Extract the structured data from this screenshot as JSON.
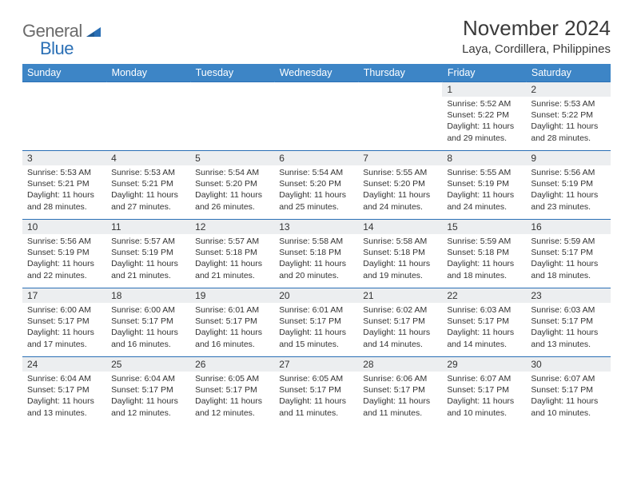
{
  "logo": {
    "part1": "General",
    "part2": "Blue"
  },
  "title": "November 2024",
  "location": "Laya, Cordillera, Philippines",
  "colors": {
    "header_bg": "#3d85c6",
    "header_text": "#ffffff",
    "daynum_bg": "#eceef0",
    "row_border": "#2a6fb5",
    "body_text": "#333333",
    "logo_gray": "#6b6b6b",
    "logo_blue": "#2a6fb5"
  },
  "days_header": [
    "Sunday",
    "Monday",
    "Tuesday",
    "Wednesday",
    "Thursday",
    "Friday",
    "Saturday"
  ],
  "weeks": [
    [
      {
        "empty": true
      },
      {
        "empty": true
      },
      {
        "empty": true
      },
      {
        "empty": true
      },
      {
        "empty": true
      },
      {
        "n": "1",
        "sr": "5:52 AM",
        "ss": "5:22 PM",
        "dl": "11 hours and 29 minutes."
      },
      {
        "n": "2",
        "sr": "5:53 AM",
        "ss": "5:22 PM",
        "dl": "11 hours and 28 minutes."
      }
    ],
    [
      {
        "n": "3",
        "sr": "5:53 AM",
        "ss": "5:21 PM",
        "dl": "11 hours and 28 minutes."
      },
      {
        "n": "4",
        "sr": "5:53 AM",
        "ss": "5:21 PM",
        "dl": "11 hours and 27 minutes."
      },
      {
        "n": "5",
        "sr": "5:54 AM",
        "ss": "5:20 PM",
        "dl": "11 hours and 26 minutes."
      },
      {
        "n": "6",
        "sr": "5:54 AM",
        "ss": "5:20 PM",
        "dl": "11 hours and 25 minutes."
      },
      {
        "n": "7",
        "sr": "5:55 AM",
        "ss": "5:20 PM",
        "dl": "11 hours and 24 minutes."
      },
      {
        "n": "8",
        "sr": "5:55 AM",
        "ss": "5:19 PM",
        "dl": "11 hours and 24 minutes."
      },
      {
        "n": "9",
        "sr": "5:56 AM",
        "ss": "5:19 PM",
        "dl": "11 hours and 23 minutes."
      }
    ],
    [
      {
        "n": "10",
        "sr": "5:56 AM",
        "ss": "5:19 PM",
        "dl": "11 hours and 22 minutes."
      },
      {
        "n": "11",
        "sr": "5:57 AM",
        "ss": "5:19 PM",
        "dl": "11 hours and 21 minutes."
      },
      {
        "n": "12",
        "sr": "5:57 AM",
        "ss": "5:18 PM",
        "dl": "11 hours and 21 minutes."
      },
      {
        "n": "13",
        "sr": "5:58 AM",
        "ss": "5:18 PM",
        "dl": "11 hours and 20 minutes."
      },
      {
        "n": "14",
        "sr": "5:58 AM",
        "ss": "5:18 PM",
        "dl": "11 hours and 19 minutes."
      },
      {
        "n": "15",
        "sr": "5:59 AM",
        "ss": "5:18 PM",
        "dl": "11 hours and 18 minutes."
      },
      {
        "n": "16",
        "sr": "5:59 AM",
        "ss": "5:17 PM",
        "dl": "11 hours and 18 minutes."
      }
    ],
    [
      {
        "n": "17",
        "sr": "6:00 AM",
        "ss": "5:17 PM",
        "dl": "11 hours and 17 minutes."
      },
      {
        "n": "18",
        "sr": "6:00 AM",
        "ss": "5:17 PM",
        "dl": "11 hours and 16 minutes."
      },
      {
        "n": "19",
        "sr": "6:01 AM",
        "ss": "5:17 PM",
        "dl": "11 hours and 16 minutes."
      },
      {
        "n": "20",
        "sr": "6:01 AM",
        "ss": "5:17 PM",
        "dl": "11 hours and 15 minutes."
      },
      {
        "n": "21",
        "sr": "6:02 AM",
        "ss": "5:17 PM",
        "dl": "11 hours and 14 minutes."
      },
      {
        "n": "22",
        "sr": "6:03 AM",
        "ss": "5:17 PM",
        "dl": "11 hours and 14 minutes."
      },
      {
        "n": "23",
        "sr": "6:03 AM",
        "ss": "5:17 PM",
        "dl": "11 hours and 13 minutes."
      }
    ],
    [
      {
        "n": "24",
        "sr": "6:04 AM",
        "ss": "5:17 PM",
        "dl": "11 hours and 13 minutes."
      },
      {
        "n": "25",
        "sr": "6:04 AM",
        "ss": "5:17 PM",
        "dl": "11 hours and 12 minutes."
      },
      {
        "n": "26",
        "sr": "6:05 AM",
        "ss": "5:17 PM",
        "dl": "11 hours and 12 minutes."
      },
      {
        "n": "27",
        "sr": "6:05 AM",
        "ss": "5:17 PM",
        "dl": "11 hours and 11 minutes."
      },
      {
        "n": "28",
        "sr": "6:06 AM",
        "ss": "5:17 PM",
        "dl": "11 hours and 11 minutes."
      },
      {
        "n": "29",
        "sr": "6:07 AM",
        "ss": "5:17 PM",
        "dl": "11 hours and 10 minutes."
      },
      {
        "n": "30",
        "sr": "6:07 AM",
        "ss": "5:17 PM",
        "dl": "11 hours and 10 minutes."
      }
    ]
  ],
  "labels": {
    "sunrise": "Sunrise: ",
    "sunset": "Sunset: ",
    "daylight": "Daylight: "
  }
}
